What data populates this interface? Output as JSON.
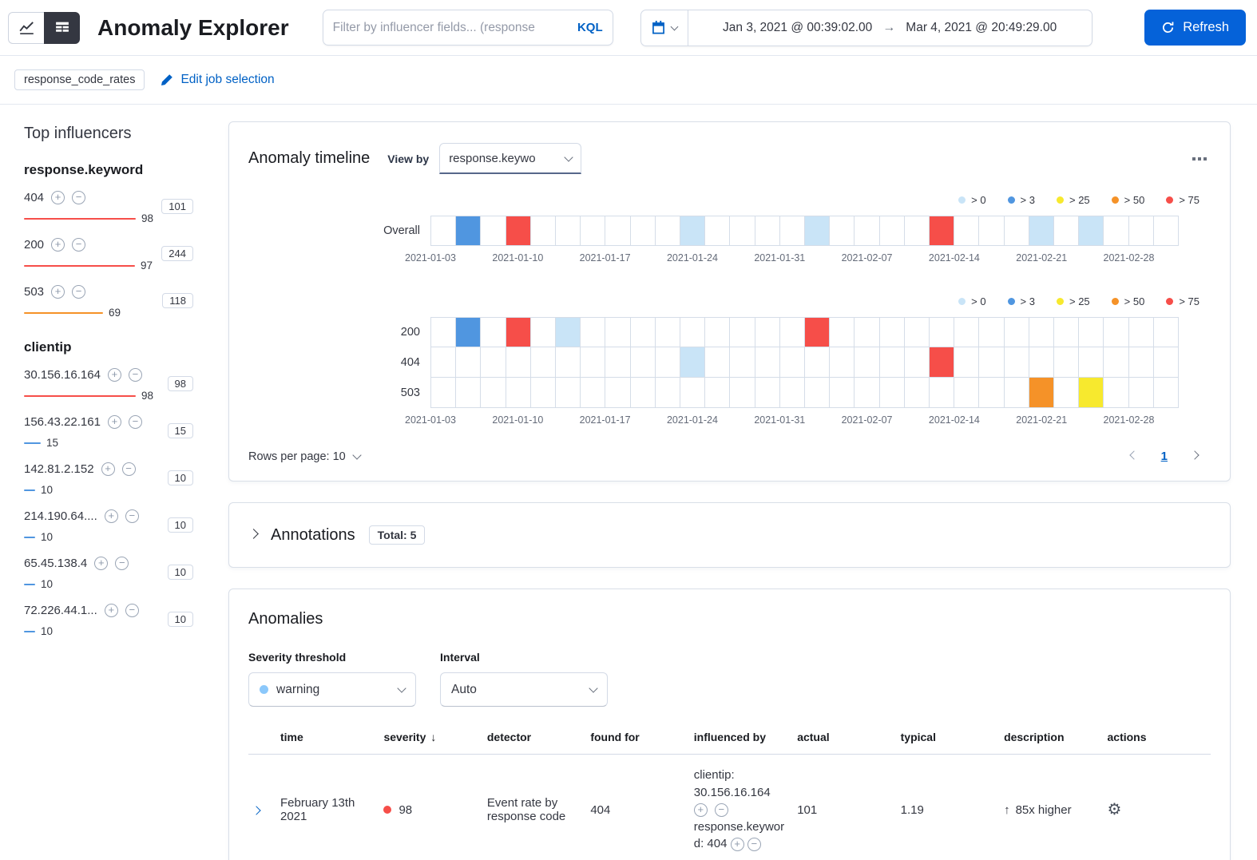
{
  "colors": {
    "link_blue": "#0061c5",
    "refresh_button": "#0562d9",
    "critical": "#f64e49",
    "major": "#f59228",
    "minor": "#f7e92e",
    "blue": "#5096e0",
    "low": "#c9e4f7",
    "warning_dot": "#8bc8fb"
  },
  "icons": {
    "gear": "⚙",
    "up_arrow": "↑",
    "sort_desc": "↓"
  },
  "header": {
    "title": "Anomaly Explorer",
    "filter_placeholder": "Filter by influencer fields... (response",
    "kql_label": "KQL",
    "date_start": "Jan 3, 2021 @ 00:39:02.00",
    "range_arrow": "→",
    "date_end": "Mar 4, 2021 @ 20:49:29.00",
    "refresh_label": "Refresh"
  },
  "jobs_bar": {
    "job_badge": "response_code_rates",
    "edit_link": "Edit job selection"
  },
  "top_influencers": {
    "title": "Top influencers",
    "groups": [
      {
        "field": "response.keyword",
        "items": [
          {
            "label": "404",
            "score": "98",
            "count": "101",
            "bar_pct": 98,
            "bar_color": "#f64e49"
          },
          {
            "label": "200",
            "score": "97",
            "count": "244",
            "bar_pct": 97,
            "bar_color": "#f64e49"
          },
          {
            "label": "503",
            "score": "69",
            "count": "118",
            "bar_pct": 69,
            "bar_color": "#f59228"
          }
        ]
      },
      {
        "field": "clientip",
        "items": [
          {
            "label": "30.156.16.164",
            "score": "98",
            "count": "98",
            "bar_pct": 98,
            "bar_color": "#f64e49"
          },
          {
            "label": "156.43.22.161",
            "score": "15",
            "count": "15",
            "bar_pct": 15,
            "bar_color": "#5096e0"
          },
          {
            "label": "142.81.2.152",
            "score": "10",
            "count": "10",
            "bar_pct": 10,
            "bar_color": "#5096e0"
          },
          {
            "label": "214.190.64....",
            "score": "10",
            "count": "10",
            "bar_pct": 10,
            "bar_color": "#5096e0"
          },
          {
            "label": "65.45.138.4",
            "score": "10",
            "count": "10",
            "bar_pct": 10,
            "bar_color": "#5096e0"
          },
          {
            "label": "72.226.44.1...",
            "score": "10",
            "count": "10",
            "bar_pct": 10,
            "bar_color": "#5096e0"
          }
        ]
      }
    ]
  },
  "timeline": {
    "title": "Anomaly timeline",
    "view_by_label": "View by",
    "view_by_value": "response.keywo",
    "legend": [
      {
        "label": "> 0",
        "color": "#c9e4f7"
      },
      {
        "label": "> 3",
        "color": "#5096e0"
      },
      {
        "label": "> 25",
        "color": "#f7e92e"
      },
      {
        "label": "> 50",
        "color": "#f59228"
      },
      {
        "label": "> 75",
        "color": "#f64e49"
      }
    ],
    "axis_labels": [
      "2021-01-03",
      "2021-01-10",
      "2021-01-17",
      "2021-01-24",
      "2021-01-31",
      "2021-02-07",
      "2021-02-14",
      "2021-02-21",
      "2021-02-28"
    ],
    "cells_per_lane": 30,
    "overall_lane": {
      "label": "Overall",
      "cells": {
        "1": "#5096e0",
        "3": "#f64e49",
        "10": "#c9e4f7",
        "15": "#c9e4f7",
        "20": "#f64e49",
        "24": "#c9e4f7",
        "26": "#c9e4f7"
      }
    },
    "view_lanes": [
      {
        "label": "200",
        "cells": {
          "1": "#5096e0",
          "3": "#f64e49",
          "5": "#c9e4f7",
          "15": "#f64e49"
        }
      },
      {
        "label": "404",
        "cells": {
          "10": "#c9e4f7",
          "20": "#f64e49"
        }
      },
      {
        "label": "503",
        "cells": {
          "24": "#f59228",
          "26": "#f7e92e"
        }
      }
    ],
    "rows_per_page_label": "Rows per page: 10",
    "page_number": "1"
  },
  "annotations": {
    "title": "Annotations",
    "total_badge": "Total: 5"
  },
  "anomalies": {
    "title": "Anomalies",
    "severity_label": "Severity threshold",
    "severity_value": "warning",
    "severity_dot_color": "#8bc8fb",
    "interval_label": "Interval",
    "interval_value": "Auto",
    "columns": [
      "time",
      "severity",
      "detector",
      "found for",
      "influenced by",
      "actual",
      "typical",
      "description",
      "actions"
    ],
    "sorted_column": "severity",
    "rows": [
      {
        "time": "February 13th 2021",
        "severity": "98",
        "severity_color": "#f64e49",
        "detector": "Event rate by response code",
        "found_for": "404",
        "influenced_by_1": "clientip: 30.156.16.164",
        "influenced_by_2": "response.keyword: 404",
        "actual": "101",
        "typical": "1.19",
        "description": "85x higher"
      }
    ]
  }
}
